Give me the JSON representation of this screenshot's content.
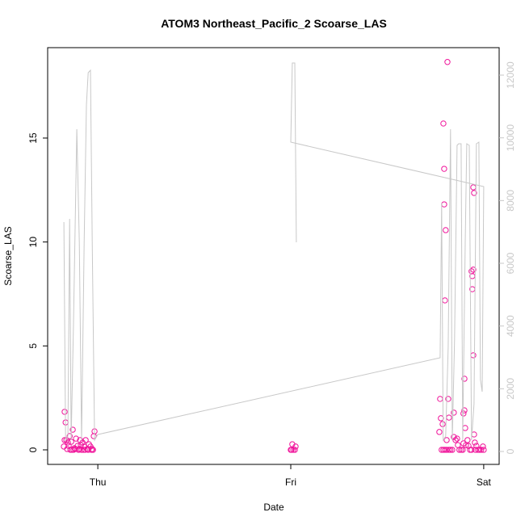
{
  "chart_data": {
    "type": "scatter",
    "title": "ATOM3 Northeast_Pacific_2 Scoarse_LAS",
    "xlabel": "Date",
    "ylabel": "Scoarse_LAS",
    "xlim": [
      -0.26,
      2.08
    ],
    "xticks": [
      {
        "value": 0,
        "label": "Thu"
      },
      {
        "value": 1,
        "label": "Fri"
      },
      {
        "value": 2,
        "label": "Sat"
      }
    ],
    "ylim": [
      -0.7,
      19.35
    ],
    "yticks": [
      0,
      5,
      10,
      15
    ],
    "y2lim": [
      -412,
      12876
    ],
    "y2ticks": [
      0,
      2000,
      4000,
      6000,
      8000,
      10000,
      12000
    ],
    "series": [
      {
        "type": "scatter",
        "color": "#f0139a",
        "x": [
          -0.172,
          -0.167,
          -0.172,
          -0.163,
          -0.155,
          -0.146,
          -0.138,
          -0.13,
          -0.121,
          -0.113,
          -0.105,
          -0.096,
          -0.088,
          -0.079,
          -0.071,
          -0.063,
          -0.054,
          -0.046,
          -0.038,
          -0.029,
          -0.021,
          -0.017,
          -0.176,
          -0.159,
          -0.142,
          -0.134,
          -0.126,
          -0.117,
          -0.1,
          -0.084,
          -0.075,
          -0.067,
          -0.05,
          -0.033,
          -0.025,
          -0.151,
          -0.092,
          1.008,
          1.0,
          1.013,
          1.025,
          1.021,
          1.004,
          1.774,
          1.778,
          1.77,
          1.791,
          1.795,
          1.795,
          1.803,
          1.799,
          1.812,
          1.816,
          1.82,
          1.808,
          1.787,
          1.782,
          1.791,
          1.799,
          1.808,
          1.82,
          1.828,
          1.837,
          1.845,
          1.845,
          1.854,
          1.862,
          1.866,
          1.874,
          1.883,
          1.891,
          1.895,
          1.9,
          1.9,
          1.904,
          1.895,
          1.908,
          1.916,
          1.921,
          1.929,
          1.937,
          1.946,
          1.95,
          1.937,
          1.941,
          1.946,
          1.941,
          1.946,
          1.954,
          1.962,
          1.971,
          1.979,
          1.987,
          1.996,
          2.0,
          1.95,
          1.958
        ],
        "values": [
          1.83,
          1.32,
          0.47,
          0.47,
          0.35,
          0.66,
          0.39,
          0.97,
          0.08,
          0.54,
          0.19,
          0.04,
          0.23,
          0.35,
          0.16,
          0.47,
          0.04,
          0.27,
          0.16,
          0.04,
          0.66,
          0.89,
          0.16,
          0.04,
          0,
          0,
          0,
          0.04,
          0,
          0,
          0,
          0,
          0,
          0,
          0,
          0.19,
          0.47,
          0.27,
          0,
          0,
          0.16,
          0,
          0,
          2.45,
          1.52,
          0.86,
          15.7,
          13.52,
          11.81,
          10.57,
          7.19,
          18.66,
          2.45,
          1.55,
          0.47,
          1.24,
          0,
          0,
          0,
          0,
          0,
          0,
          0,
          1.79,
          0.62,
          0.47,
          0.54,
          0.23,
          0,
          0,
          0,
          1.75,
          1.9,
          3.42,
          1.05,
          0.31,
          0.23,
          0.47,
          0.19,
          0,
          0,
          12.63,
          12.36,
          8.59,
          8.36,
          8.67,
          7.73,
          4.55,
          0.35,
          0.19,
          0,
          0,
          0,
          0.16,
          0,
          0.74,
          0
        ]
      },
      {
        "type": "line",
        "axis": "y2",
        "color": "#c8c8c8",
        "x": [
          -0.176,
          -0.167,
          -0.155,
          -0.146,
          -0.138,
          -0.126,
          -0.109,
          -0.096,
          -0.084,
          -0.071,
          -0.059,
          -0.05,
          -0.038,
          -0.029,
          -0.017,
          0,
          1.774,
          1.782,
          1.79,
          1.803,
          1.816,
          1.828,
          1.837,
          1.849,
          1.862,
          1.87,
          1.883,
          1.891,
          1.904,
          1.912,
          1.925,
          1.937,
          1.95,
          1.962,
          1.975,
          1.983,
          1.992,
          2.0,
          1.0,
          1.008,
          1.021,
          1.029
        ],
        "values": [
          7313,
          361,
          489,
          7416,
          361,
          4095,
          10274,
          6669,
          361,
          6669,
          11047,
          12077,
          12154,
          6669,
          361,
          541,
          2987,
          7931,
          361,
          489,
          3322,
          10274,
          361,
          3579,
          9759,
          9811,
          9811,
          361,
          6669,
          9811,
          9759,
          361,
          1519,
          9811,
          9862,
          2292,
          1906,
          8446,
          9862,
          12386,
          12386,
          6669
        ]
      }
    ]
  }
}
